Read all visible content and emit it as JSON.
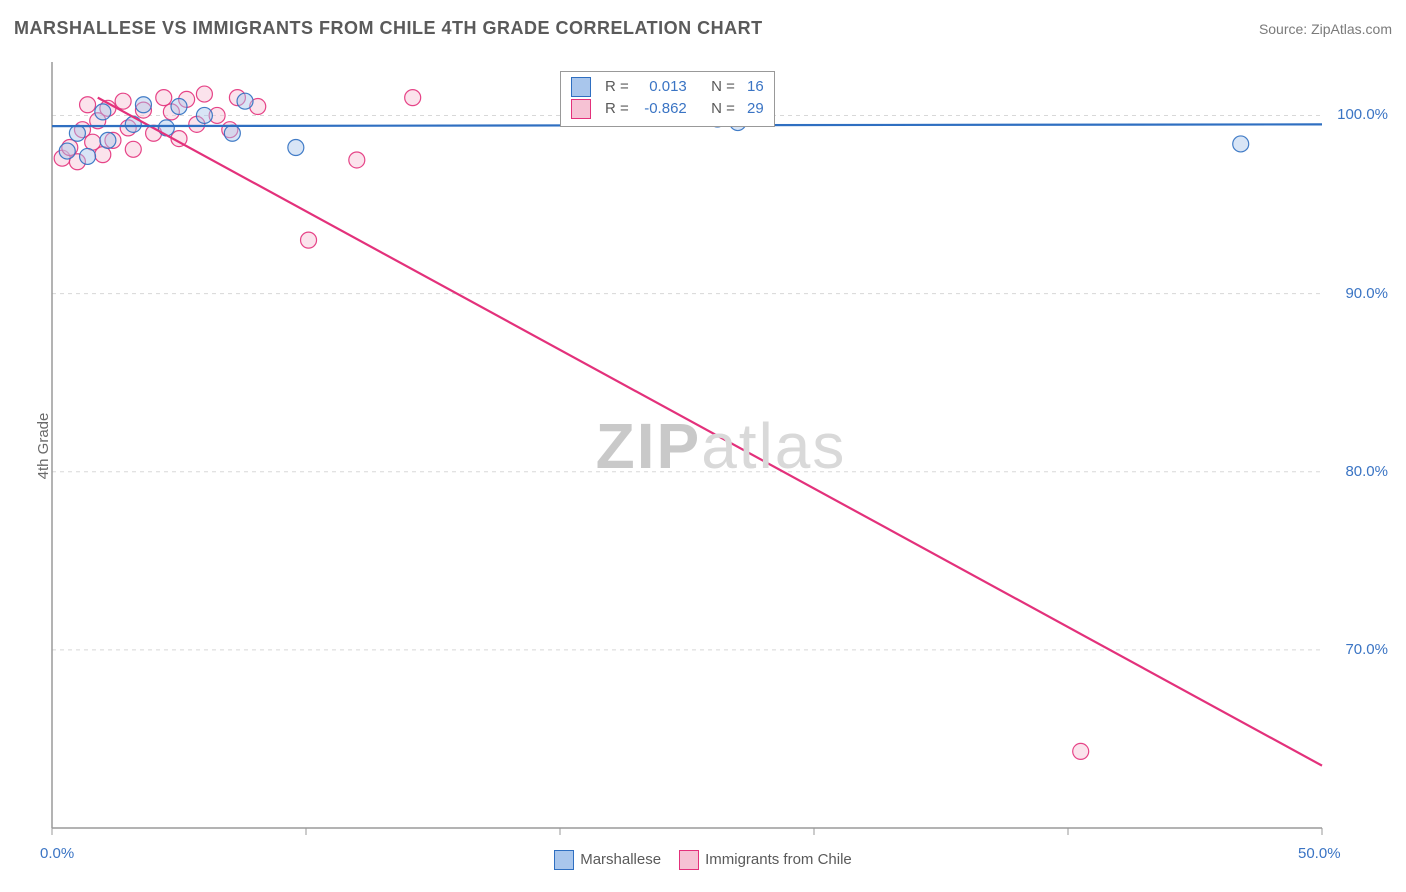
{
  "header": {
    "title": "MARSHALLESE VS IMMIGRANTS FROM CHILE 4TH GRADE CORRELATION CHART",
    "source": "Source: ZipAtlas.com"
  },
  "yaxis_label": "4th Grade",
  "watermark": {
    "part1": "ZIP",
    "part2": "atlas"
  },
  "colors": {
    "blue_fill": "#a9c6ec",
    "blue_stroke": "#2f6fc1",
    "pink_fill": "#f6c2d4",
    "pink_stroke": "#e3317b",
    "grid": "#d8d8d8",
    "axis": "#9a9a9a",
    "tick_label": "#3a74c4",
    "text": "#5a5a5a",
    "bg": "#ffffff"
  },
  "chart": {
    "type": "scatter",
    "xlim": [
      0,
      50
    ],
    "ylim": [
      60,
      103
    ],
    "xticks": [
      0,
      50
    ],
    "xtick_labels": [
      "0.0%",
      "50.0%"
    ],
    "yticks": [
      70,
      80,
      90,
      100
    ],
    "ytick_labels": [
      "70.0%",
      "80.0%",
      "90.0%",
      "100.0%"
    ],
    "x_minor_ticks": [
      10,
      20,
      30,
      40
    ],
    "marker_radius": 8,
    "marker_opacity": 0.45,
    "line_width": 2.2,
    "series": {
      "marshallese": {
        "label": "Marshallese",
        "color_fill": "#a9c6ec",
        "color_stroke": "#2f6fc1",
        "R": "0.013",
        "N": "16",
        "points": [
          [
            0.6,
            98.0
          ],
          [
            1.0,
            99.0
          ],
          [
            1.4,
            97.7
          ],
          [
            2.0,
            100.2
          ],
          [
            2.2,
            98.6
          ],
          [
            3.2,
            99.5
          ],
          [
            3.6,
            100.6
          ],
          [
            4.5,
            99.3
          ],
          [
            5.0,
            100.5
          ],
          [
            6.0,
            100.0
          ],
          [
            7.1,
            99.0
          ],
          [
            7.6,
            100.8
          ],
          [
            9.6,
            98.2
          ],
          [
            26.2,
            99.8
          ],
          [
            27.0,
            99.6
          ],
          [
            46.8,
            98.4
          ]
        ],
        "trend": {
          "x1": 0,
          "y1": 99.4,
          "x2": 50,
          "y2": 99.5
        }
      },
      "chile": {
        "label": "Immigrants from Chile",
        "color_fill": "#f6c2d4",
        "color_stroke": "#e3317b",
        "R": "-0.862",
        "N": "29",
        "points": [
          [
            0.4,
            97.6
          ],
          [
            0.7,
            98.2
          ],
          [
            1.0,
            97.4
          ],
          [
            1.2,
            99.2
          ],
          [
            1.4,
            100.6
          ],
          [
            1.6,
            98.5
          ],
          [
            1.8,
            99.7
          ],
          [
            2.0,
            97.8
          ],
          [
            2.2,
            100.4
          ],
          [
            2.4,
            98.6
          ],
          [
            2.8,
            100.8
          ],
          [
            3.0,
            99.3
          ],
          [
            3.2,
            98.1
          ],
          [
            3.6,
            100.3
          ],
          [
            4.0,
            99.0
          ],
          [
            4.4,
            101.0
          ],
          [
            4.7,
            100.2
          ],
          [
            5.0,
            98.7
          ],
          [
            5.3,
            100.9
          ],
          [
            5.7,
            99.5
          ],
          [
            6.0,
            101.2
          ],
          [
            6.5,
            100.0
          ],
          [
            7.0,
            99.2
          ],
          [
            7.3,
            101.0
          ],
          [
            8.1,
            100.5
          ],
          [
            10.1,
            93.0
          ],
          [
            12.0,
            97.5
          ],
          [
            14.2,
            101.0
          ],
          [
            40.5,
            64.3
          ]
        ],
        "trend": {
          "x1": 1.8,
          "y1": 101.0,
          "x2": 50,
          "y2": 63.5
        }
      }
    }
  },
  "legend_bottom": {
    "items": [
      {
        "label": "Marshallese",
        "swatch": "blue"
      },
      {
        "label": "Immigrants from Chile",
        "swatch": "pink"
      }
    ]
  },
  "stats_box": {
    "rows": [
      {
        "swatch": "blue",
        "r_label": "R  =",
        "r_value": "0.013",
        "n_label": "N  =",
        "n_value": "16"
      },
      {
        "swatch": "pink",
        "r_label": "R  =",
        "r_value": "-0.862",
        "n_label": "N  =",
        "n_value": "29"
      }
    ]
  }
}
